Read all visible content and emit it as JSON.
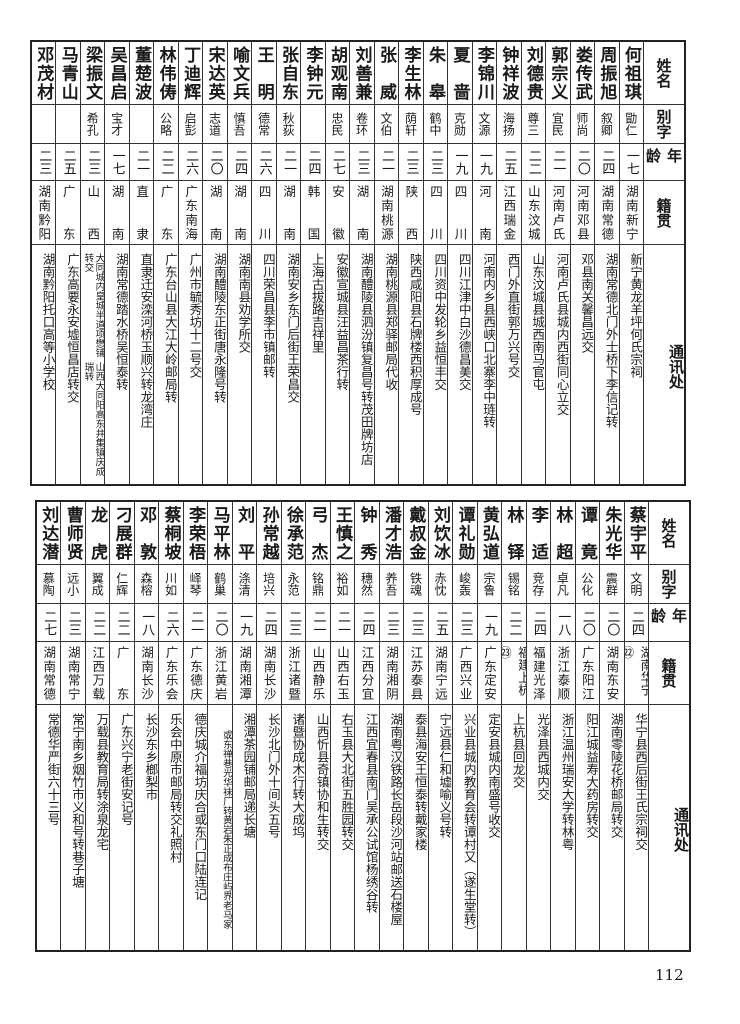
{
  "headers": {
    "name": "姓名",
    "alias": "别字",
    "age": "年龄",
    "origin": "籍贯",
    "address": "通讯处"
  },
  "tables": [
    {
      "rows": [
        {
          "name": "何祖琪",
          "alias": "勖仁",
          "age": "一七",
          "origin": "湖南新宁",
          "address": "新宁黄龙羊坪何氏宗祠"
        },
        {
          "name": "周振旭",
          "alias": "叙卿",
          "age": "二四",
          "origin": "湖南常德",
          "address": "湖南常德北门外士桥下李信记转"
        },
        {
          "name": "娄传武",
          "alias": "师尚",
          "age": "二〇",
          "origin": "河南邓县",
          "address": "邓县南关馨昌远交"
        },
        {
          "name": "郭宗义",
          "alias": "宜民",
          "age": "二一",
          "origin": "河南卢氏",
          "address": "河南卢氏县城内西街同心立交"
        },
        {
          "name": "刘德贵",
          "alias": "尊三",
          "age": "二二",
          "origin": "山东汶城",
          "address": "山东汶城县城西南马官屯"
        },
        {
          "name": "钟祥波",
          "alias": "海扬",
          "age": "二五",
          "origin": "江西瑞金",
          "address": "西门外直街郭万兴号交"
        },
        {
          "name": "李锦川",
          "alias": "文源",
          "age": "一九",
          "origin": "河南",
          "address": "河南内乡县西峡口北寨李中琏转"
        },
        {
          "name": "夏啬",
          "alias": "克勋",
          "age": "一九",
          "origin": "四川",
          "address": "四川江津中白沙德昌美交"
        },
        {
          "name": "朱皋",
          "alias": "鹤中",
          "age": "二三",
          "origin": "四川",
          "address": "四川资中发轮乡益恒丰交"
        },
        {
          "name": "李生林",
          "alias": "荫轩",
          "age": "二三",
          "origin": "陕西",
          "address": "陕西咸阳县石牌楼西积厚成号"
        },
        {
          "name": "张威",
          "alias": "文伯",
          "age": "二一",
          "origin": "湖南桃源",
          "address": "湖南桃源县郑驿邮局代收"
        },
        {
          "name": "刘善兼",
          "alias": "卷环",
          "age": "二三",
          "origin": "湖南",
          "address": "湖南醴陵县泗汾镇复昌号转茂田牌坊店"
        },
        {
          "name": "胡观南",
          "alias": "忠民",
          "age": "二七",
          "origin": "安徽",
          "address": "安徽宣城县汪益昌茶行转"
        },
        {
          "name": "李钟元",
          "alias": "",
          "age": "二四",
          "origin": "韩国",
          "address": "上海古拔路吉祥里"
        },
        {
          "name": "张自东",
          "alias": "秋荻",
          "age": "二一",
          "origin": "湖南",
          "address": "湖南安乡东门后街王荣昌交"
        },
        {
          "name": "王明",
          "alias": "德常",
          "age": "二六",
          "origin": "四川",
          "address": "四川荣昌县李市镇邮转"
        },
        {
          "name": "喻文兵",
          "alias": "慎吾",
          "age": "二四",
          "origin": "湖南",
          "address": "湖南南县劝学所交"
        },
        {
          "name": "宋达英",
          "alias": "志道",
          "age": "二〇",
          "origin": "湖南",
          "address": "湖南醴陵东正街唐永隆号转"
        },
        {
          "name": "丁迪辉",
          "alias": "启彭",
          "age": "二六",
          "origin": "广东南海",
          "address": "广州市毓秀坊十二号交"
        },
        {
          "name": "林伟俦",
          "alias": "公略",
          "age": "二二",
          "origin": "广东",
          "address": "广东台山县大江大岭邮局转"
        },
        {
          "name": "董楚波",
          "alias": "",
          "age": "二一",
          "origin": "直隶",
          "address": "直隶迁安滦河桥玉顺兴转龙湾庄"
        },
        {
          "name": "吴昌启",
          "alias": "宝才",
          "age": "一七",
          "origin": "湖南",
          "address": "湖南常德踏水桥吴恒泰转"
        },
        {
          "name": "梁振文",
          "alias": "希孔",
          "age": "二三",
          "origin": "山西",
          "address": "山西大同阳高东井集镇庆成瑞转",
          "address_2": "大同城内皇城半道项懋铺转交"
        },
        {
          "name": "马青山",
          "alias": "",
          "age": "二五",
          "origin": "广东",
          "address": "广东高要永安墟恒昌店转交"
        },
        {
          "name": "邓茂材",
          "alias": "",
          "age": "二三",
          "origin": "湖南黔阳",
          "address": "湖南黔阳托口高等小学校"
        }
      ]
    },
    {
      "rows": [
        {
          "name": "蔡宇平",
          "alias": "文明",
          "age": "二四",
          "origin": "湖南华宁㉒",
          "address": "华宁县西后街王氏宗祠交"
        },
        {
          "name": "朱光华",
          "alias": "震群",
          "age": "二〇",
          "origin": "湖南东安",
          "address": "湖南零陵花桥邮局转交"
        },
        {
          "name": "谭竟",
          "alias": "公化",
          "age": "二〇",
          "origin": "广东阳江",
          "address": "阳江城益寿大药房转交"
        },
        {
          "name": "林超",
          "alias": "卓凡",
          "age": "一八",
          "origin": "浙江泰顺",
          "address": "浙江温州瑞安大学转林粤"
        },
        {
          "name": "李适",
          "alias": "竞存",
          "age": "二四",
          "origin": "福建光泽",
          "address": "光泽县西城内交"
        },
        {
          "name": "林铎",
          "alias": "锡铭",
          "age": "二二",
          "origin": "福建上杭㉓",
          "address": "上杭县回龙交"
        },
        {
          "name": "黄弘道",
          "alias": "宗鲁",
          "age": "一九",
          "origin": "广东定安",
          "address": "定安县城内南盛号收交"
        },
        {
          "name": "谭礼勋",
          "alias": "峻轰",
          "age": "二三",
          "origin": "广西兴业",
          "address": "兴业县城内教育会转谭村又（遂生堂转）"
        },
        {
          "name": "刘饮冰",
          "alias": "赤忱",
          "age": "二五",
          "origin": "湖南宁远",
          "address": "宁远县仁和墟喻义号转"
        },
        {
          "name": "戴叔金",
          "alias": "铁魂",
          "age": "二三",
          "origin": "江苏泰县",
          "address": "泰县海安王恒泰转戴家楼"
        },
        {
          "name": "潘才浩",
          "alias": "养吾",
          "age": "二三",
          "origin": "湖南湘阴",
          "address": "湖南粤汉铁路长岳段沙河站邮送石楼屋"
        },
        {
          "name": "钟秀",
          "alias": "穗然",
          "age": "二四",
          "origin": "江西分宜",
          "address": "江西宜春县南门吴承公试馆杨绣谷转"
        },
        {
          "name": "王慎之",
          "alias": "裕如",
          "age": "二一",
          "origin": "山西右玉",
          "address": "右玉县大北街五胜园转交"
        },
        {
          "name": "弓杰",
          "alias": "铭鼎",
          "age": "二一",
          "origin": "山西静乐",
          "address": "山西忻县奇镇协和生转交"
        },
        {
          "name": "徐承范",
          "alias": "永范",
          "age": "二三",
          "origin": "浙江诸暨",
          "address": "诸暨协成木行转大成坞"
        },
        {
          "name": "孙常越",
          "alias": "培兴",
          "age": "二四",
          "origin": "湖南长沙",
          "address": "长沙北门外十间头五号"
        },
        {
          "name": "刘平",
          "alias": "涤清",
          "age": "一九",
          "origin": "湖南湘潭",
          "address": "湘潭茶园铺邮局递长塘"
        },
        {
          "name": "马平林",
          "alias": "鹤巢",
          "age": "二〇",
          "origin": "浙江黄岩",
          "address": "黄岩朱正成布庄屿界老马家",
          "address_2": "或东禅巷光华袜厂转"
        },
        {
          "name": "李荣梧",
          "alias": "峄琴",
          "age": "二一",
          "origin": "广东德庆",
          "address": "德庆城介福坊庆合或东门口陆连记"
        },
        {
          "name": "蔡桐坡",
          "alias": "川如",
          "age": "二六",
          "origin": "广东乐会",
          "address": "乐会中原市邮局转交礼照村"
        },
        {
          "name": "邓敦",
          "alias": "森榕",
          "age": "一八",
          "origin": "湖南长沙",
          "address": "长沙东乡榔梨市"
        },
        {
          "name": "刁展群",
          "alias": "仁辉",
          "age": "二二",
          "origin": "广东",
          "address": "广东兴宁老街安记号"
        },
        {
          "name": "龙虎",
          "alias": "翼成",
          "age": "二二",
          "origin": "江西万载",
          "address": "万载县教育局转涂泉龙宅"
        },
        {
          "name": "曹师贤",
          "alias": "远小",
          "age": "二三",
          "origin": "湖南常宁",
          "address": "常宁南乡烟竹市义和号转巷子塘"
        },
        {
          "name": "刘达潜",
          "alias": "慕陶",
          "age": "二七",
          "origin": "湖南常德",
          "address": "常德华严街六十三号"
        }
      ]
    }
  ],
  "page_number": "112"
}
